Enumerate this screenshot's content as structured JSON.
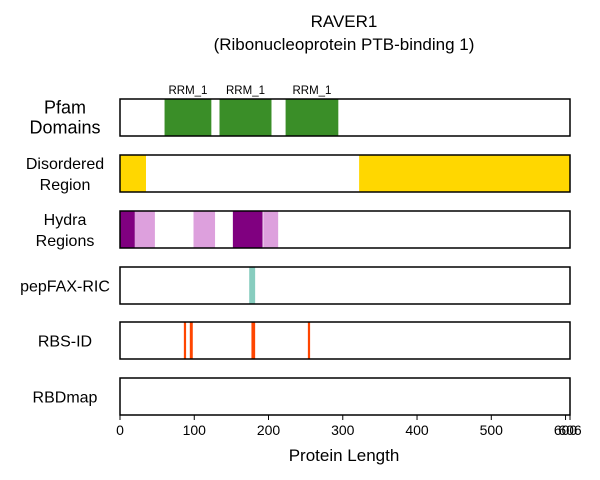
{
  "title_line1": "RAVER1",
  "title_line2": "(Ribonucleoprotein PTB-binding 1)",
  "chart_data": {
    "type": "track-diagram",
    "title": "RAVER1\n(Ribonucleoprotein PTB-binding 1)",
    "xlabel": "Protein Length",
    "xlim": [
      0,
      606
    ],
    "xticks": [
      0,
      100,
      200,
      300,
      400,
      500,
      600,
      606
    ],
    "xtick_labels": [
      "0",
      "100",
      "200",
      "300",
      "400",
      "500",
      "600",
      "606"
    ],
    "grid": "vertical dashed",
    "tracks": [
      {
        "id": "pfam",
        "label_lines": [
          "Pfam",
          "Domains"
        ],
        "big_label": true,
        "features": [
          {
            "start": 60,
            "end": 123,
            "color": "#3a8e28",
            "label": "RRM_1"
          },
          {
            "start": 134,
            "end": 204,
            "color": "#3a8e28",
            "label": "RRM_1"
          },
          {
            "start": 223,
            "end": 294,
            "color": "#3a8e28",
            "label": "RRM_1"
          }
        ]
      },
      {
        "id": "disordered",
        "label_lines": [
          "Disordered",
          "Region"
        ],
        "features": [
          {
            "start": 0,
            "end": 35,
            "color": "#ffd700"
          },
          {
            "start": 322,
            "end": 606,
            "color": "#ffd700"
          }
        ]
      },
      {
        "id": "hydra",
        "label_lines": [
          "Hydra",
          "Regions"
        ],
        "features": [
          {
            "start": 0,
            "end": 20,
            "color": "#800080"
          },
          {
            "start": 20,
            "end": 47,
            "color": "#dda0dd"
          },
          {
            "start": 99,
            "end": 128,
            "color": "#dda0dd"
          },
          {
            "start": 152,
            "end": 192,
            "color": "#800080"
          },
          {
            "start": 193,
            "end": 213,
            "color": "#dda0dd"
          }
        ]
      },
      {
        "id": "pepfax",
        "label_lines": [
          "pepFAX-RIC"
        ],
        "features": [
          {
            "start": 174,
            "end": 182,
            "color": "#88cdbf"
          }
        ]
      },
      {
        "id": "rbsid",
        "label_lines": [
          "RBS-ID"
        ],
        "features": [
          {
            "start": 86,
            "end": 89,
            "color": "#ff4500"
          },
          {
            "start": 94,
            "end": 98,
            "color": "#ff4500"
          },
          {
            "start": 177,
            "end": 182,
            "color": "#ff4500"
          },
          {
            "start": 253,
            "end": 256,
            "color": "#ff4500"
          }
        ]
      },
      {
        "id": "rbdmap",
        "label_lines": [
          "RBDmap"
        ],
        "features": []
      }
    ]
  }
}
